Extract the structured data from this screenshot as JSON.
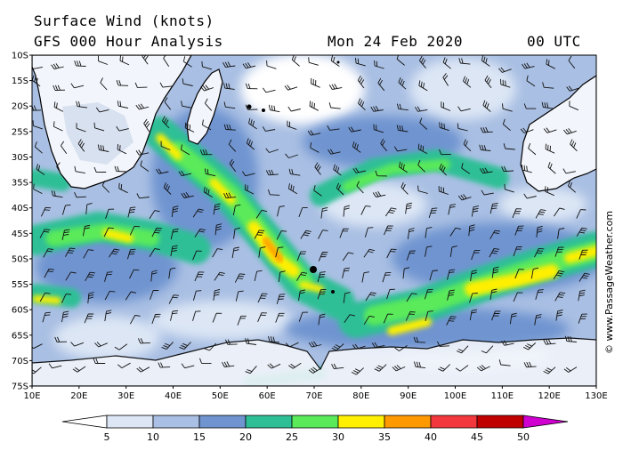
{
  "header": {
    "title": "Surface Wind (knots)",
    "model": "GFS 000 Hour Analysis",
    "date": "Mon 24 Feb 2020",
    "time": "00 UTC"
  },
  "copyright": "© www.PassageWeather.com",
  "map": {
    "lat_labels": [
      "10S",
      "15S",
      "20S",
      "25S",
      "30S",
      "35S",
      "40S",
      "45S",
      "50S",
      "55S",
      "60S",
      "65S",
      "70S",
      "75S"
    ],
    "lon_labels": [
      "10E",
      "20E",
      "30E",
      "40E",
      "50E",
      "60E",
      "70E",
      "80E",
      "90E",
      "100E",
      "110E",
      "120E",
      "130E"
    ]
  },
  "legend": {
    "ticks": [
      "5",
      "10",
      "15",
      "20",
      "25",
      "30",
      "35",
      "40",
      "45",
      "50"
    ],
    "colors": [
      "#ffffff",
      "#dce6f5",
      "#a9bfe3",
      "#6f94d0",
      "#2fbf96",
      "#5aea5a",
      "#ffef00",
      "#ff9900",
      "#f2383c",
      "#c00000",
      "#d000d0"
    ]
  }
}
